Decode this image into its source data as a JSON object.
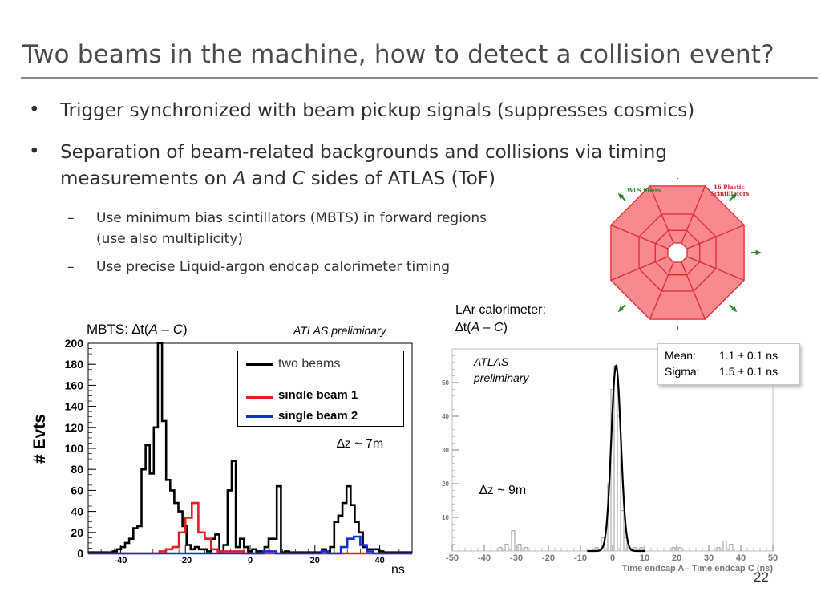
{
  "slide": {
    "title": "Two beams in the machine, how to detect a collision event?",
    "number": "22"
  },
  "bullets": [
    {
      "symbol": "•",
      "text": "Trigger synchronized with beam pickup signals (suppresses cosmics)"
    },
    {
      "symbol": "•",
      "line1": "Separation of beam-related backgrounds and collisions via timing",
      "line2_a": "measurements on ",
      "line2_b": "A",
      "line2_c": " and ",
      "line2_d": "C",
      "line2_e": " sides of ATLAS (ToF)"
    }
  ],
  "sub_bullets": [
    {
      "symbol": "–",
      "line1": "Use minimum bias scintillators (MBTS) in forward regions",
      "line2": "(use also multiplicity)"
    },
    {
      "symbol": "–",
      "line1": "Use precise Liquid-argon endcap calorimeter timing"
    }
  ],
  "mbts_diagram": {
    "label_left": "WLS fibers",
    "label_right_1": "16 Plastic",
    "label_right_2": "Scintillators",
    "fill": "#f7898f",
    "edge": "#e0282e",
    "label_color": "#2a8a2a",
    "label_right_color": "#c0282e"
  },
  "captions": {
    "mbts_a": "MBTS: ",
    "mbts_b": "∆t(",
    "mbts_c": "A",
    "mbts_d": " – ",
    "mbts_e": "C",
    "mbts_f": ")",
    "atlas_prelim_left": "ATLAS preliminary",
    "lar_line1": "LAr calorimeter:",
    "lar_a": "∆t(",
    "lar_b": "A",
    "lar_c": " – ",
    "lar_d": "C",
    "lar_e": ")",
    "atlas_prelim_right_1": "ATLAS",
    "atlas_prelim_right_2": "preliminary",
    "dz_left": "∆z ~ 7m",
    "dz_right": "∆z ~ 9m",
    "ns": "ns"
  },
  "chart_data": [
    {
      "type": "line",
      "title": "MBTS: ∆t(A – C)",
      "ylabel": "# Evts",
      "xlabel": "ns",
      "xlim": [
        -50,
        50
      ],
      "ylim": [
        0,
        200
      ],
      "xticks": [
        "-40",
        "-20",
        "0",
        "20",
        "40"
      ],
      "yticks": [
        "0",
        "20",
        "40",
        "60",
        "80",
        "100",
        "120",
        "140",
        "160",
        "180",
        "200"
      ],
      "legend": [
        "two beams",
        "single beam 1",
        "single beam 2"
      ],
      "legend_position": "top-right",
      "colors": [
        "#000000",
        "#e02020",
        "#1030d0"
      ],
      "series": [
        {
          "name": "two beams",
          "step": "histogram",
          "bin_width": 2,
          "bins_start": -48,
          "values": [
            1,
            1,
            1,
            1,
            1,
            1,
            2,
            4,
            6,
            10,
            14,
            24,
            26,
            80,
            103,
            76,
            120,
            200,
            126,
            70,
            60,
            48,
            40,
            26,
            8,
            4,
            6,
            4,
            4,
            2,
            14,
            18,
            2,
            8,
            60,
            88,
            6,
            14,
            6,
            2,
            4,
            2,
            2,
            6,
            14,
            14,
            64,
            1,
            2,
            1,
            1,
            1,
            1,
            1,
            1,
            1,
            1,
            4,
            2,
            6,
            30,
            36,
            48,
            64,
            46,
            30,
            20,
            6,
            4,
            4,
            4,
            2,
            1,
            1,
            1,
            1,
            1,
            1,
            1
          ]
        },
        {
          "name": "single beam 1",
          "step": "histogram",
          "bin_width": 2,
          "bins_start": -48,
          "values": [
            0,
            0,
            0,
            0,
            0,
            0,
            0,
            0,
            0,
            0,
            0,
            2,
            4,
            6,
            20,
            34,
            48,
            20,
            14,
            4,
            2,
            2,
            2,
            2,
            0,
            0,
            0,
            0,
            0,
            0,
            0,
            0,
            0,
            0,
            0,
            0,
            0,
            0,
            0,
            0,
            0,
            0,
            0,
            0,
            0,
            0,
            0,
            0,
            0,
            0
          ]
        },
        {
          "name": "single beam 2",
          "step": "histogram",
          "bin_width": 2,
          "bins_start": -48,
          "values": [
            0,
            0,
            0,
            0,
            0,
            0,
            0,
            0,
            0,
            0,
            0,
            0,
            0,
            0,
            0,
            0,
            0,
            0,
            0,
            0,
            0,
            0,
            0,
            0,
            0,
            0,
            0,
            2,
            2,
            0,
            0,
            0,
            0,
            0,
            0,
            0,
            2,
            0,
            0,
            6,
            14,
            16,
            8,
            2,
            0,
            0,
            0,
            0,
            0,
            0
          ]
        }
      ]
    },
    {
      "type": "line",
      "title": "LAr calorimeter: ∆t(A – C)",
      "xlabel": "Time endcap A - Time endcap C (ns)",
      "xlim": [
        -50,
        50
      ],
      "ylim": [
        0,
        60
      ],
      "xticks": [
        "-50",
        "-40",
        "-30",
        "-20",
        "-10",
        "0",
        "10",
        "20",
        "30",
        "40",
        "50"
      ],
      "yticks": [
        "10",
        "20",
        "30",
        "40",
        "50"
      ],
      "stats": {
        "mean_label": "Mean:",
        "mean_value": "1.1 ± 0.1 ns",
        "sigma_label": "Sigma:",
        "sigma_value": "1.5 ± 0.1 ns"
      },
      "series": [
        {
          "name": "data",
          "step": "histogram",
          "x": [
            -35,
            -33,
            -31,
            -29,
            -27,
            -5,
            -3,
            -1,
            0,
            1,
            2,
            3,
            4,
            5,
            7,
            9,
            19,
            21,
            33,
            35,
            37
          ],
          "values": [
            1,
            2,
            6,
            2,
            1,
            1,
            4,
            20,
            48,
            55,
            40,
            12,
            4,
            1,
            1,
            1,
            1,
            1,
            1,
            3,
            2
          ]
        },
        {
          "name": "gaussian fit",
          "mean": 1.1,
          "sigma": 1.5,
          "amplitude": 55
        }
      ]
    }
  ]
}
